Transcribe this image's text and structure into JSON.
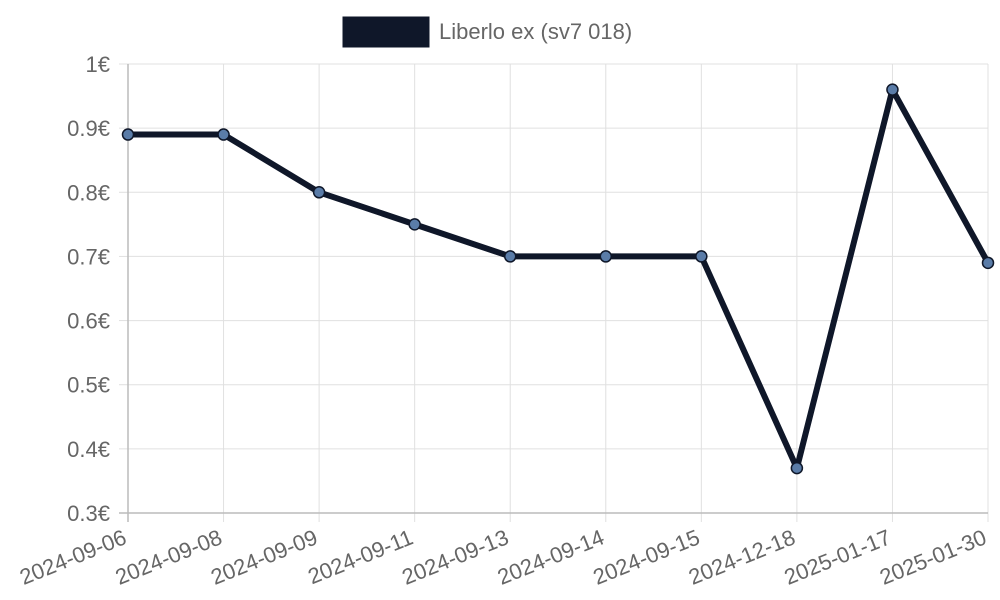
{
  "chart_data": {
    "type": "line",
    "categories": [
      "2024-09-06",
      "2024-09-08",
      "2024-09-09",
      "2024-09-11",
      "2024-09-13",
      "2024-09-14",
      "2024-09-15",
      "2024-12-18",
      "2025-01-17",
      "2025-01-30"
    ],
    "series": [
      {
        "name": "Liberlo ex (sv7 018)",
        "values": [
          0.89,
          0.89,
          0.8,
          0.75,
          0.7,
          0.7,
          0.7,
          0.37,
          0.96,
          0.69
        ],
        "color": "#0f1729",
        "point_color": "#5a7ca8"
      }
    ],
    "ylim": [
      0.3,
      1.0
    ],
    "yticks": [
      {
        "value": 1.0,
        "label": "1€"
      },
      {
        "value": 0.9,
        "label": "0.9€"
      },
      {
        "value": 0.8,
        "label": "0.8€"
      },
      {
        "value": 0.7,
        "label": "0.7€"
      },
      {
        "value": 0.6,
        "label": "0.6€"
      },
      {
        "value": 0.5,
        "label": "0.5€"
      },
      {
        "value": 0.4,
        "label": "0.4€"
      },
      {
        "value": 0.3,
        "label": "0.3€"
      }
    ],
    "grid": true,
    "legend_position": "top-center",
    "grid_color": "#e0e0e0",
    "axis_color": "#bbbbbb",
    "text_color": "#666666"
  }
}
